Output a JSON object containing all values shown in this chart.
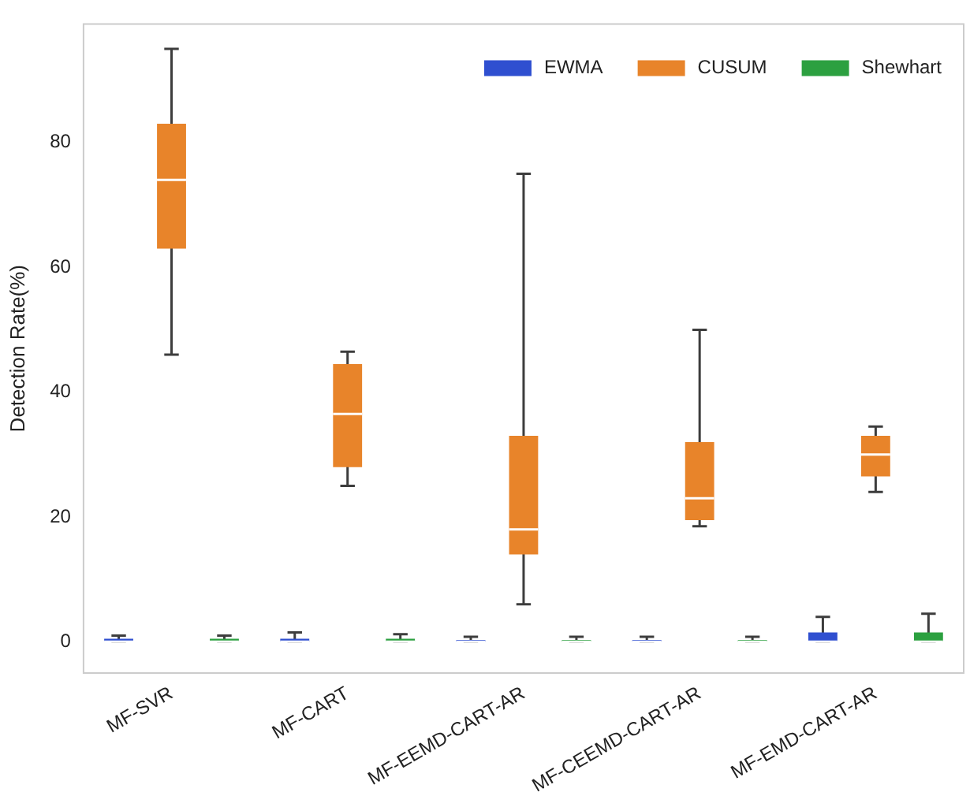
{
  "chart_data": {
    "type": "box",
    "ylabel": "Detection Rate(%)",
    "categories": [
      "MF-SVR",
      "MF-CART",
      "MF-EEMD-CART-AR",
      "MF-CEEMD-CART-AR",
      "MF-EMD-CART-AR"
    ],
    "series": [
      {
        "name": "EWMA",
        "color": "#2f4fd0",
        "boxes": [
          {
            "low": 0,
            "q1": 0,
            "median": 0,
            "q3": 0.5,
            "high": 1
          },
          {
            "low": 0,
            "q1": 0,
            "median": 0,
            "q3": 0.5,
            "high": 1.5
          },
          {
            "low": 0,
            "q1": 0,
            "median": 0,
            "q3": 0.3,
            "high": 0.8
          },
          {
            "low": 0,
            "q1": 0,
            "median": 0,
            "q3": 0.3,
            "high": 0.8
          },
          {
            "low": 0,
            "q1": 0,
            "median": 0,
            "q3": 1.5,
            "high": 4
          }
        ]
      },
      {
        "name": "CUSUM",
        "color": "#e8842a",
        "boxes": [
          {
            "low": 46,
            "q1": 63,
            "median": 74,
            "q3": 83,
            "high": 95
          },
          {
            "low": 25,
            "q1": 28,
            "median": 36.5,
            "q3": 44.5,
            "high": 46.5
          },
          {
            "low": 6,
            "q1": 14,
            "median": 18,
            "q3": 33,
            "high": 75
          },
          {
            "low": 18.5,
            "q1": 19.5,
            "median": 23,
            "q3": 32,
            "high": 50
          },
          {
            "low": 24,
            "q1": 26.5,
            "median": 30,
            "q3": 33,
            "high": 34.5
          }
        ]
      },
      {
        "name": "Shewhart",
        "color": "#2ca040",
        "boxes": [
          {
            "low": 0,
            "q1": 0,
            "median": 0,
            "q3": 0.5,
            "high": 1
          },
          {
            "low": 0,
            "q1": 0,
            "median": 0,
            "q3": 0.5,
            "high": 1.2
          },
          {
            "low": 0,
            "q1": 0,
            "median": 0,
            "q3": 0.3,
            "high": 0.8
          },
          {
            "low": 0,
            "q1": 0,
            "median": 0,
            "q3": 0.3,
            "high": 0.8
          },
          {
            "low": 0,
            "q1": 0,
            "median": 0,
            "q3": 1.5,
            "high": 4.5
          }
        ]
      }
    ],
    "ylim": [
      -5,
      99
    ],
    "yticks": [
      0,
      20,
      40,
      60,
      80
    ],
    "grid": false,
    "legend": "top right"
  }
}
